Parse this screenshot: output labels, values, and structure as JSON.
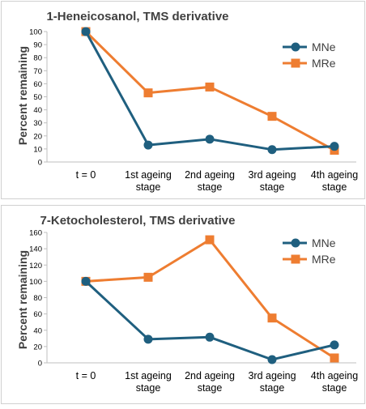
{
  "colors": {
    "MNe": "#1f5f7f",
    "MRe": "#ee7d31"
  },
  "chart_data": [
    {
      "type": "line",
      "title": "1-Heneicosanol, TMS derivative",
      "ylabel": "Percent remaining",
      "ylim": [
        0,
        100
      ],
      "yticks": [
        "0",
        "10",
        "20",
        "30",
        "40",
        "50",
        "60",
        "70",
        "80",
        "90",
        "100"
      ],
      "categories": [
        [
          "t = 0"
        ],
        [
          "1st ageing",
          "stage"
        ],
        [
          "2nd ageing",
          "stage"
        ],
        [
          "3rd ageing",
          "stage"
        ],
        [
          "4th ageing",
          "stage"
        ]
      ],
      "legend_position": "top-right",
      "series": [
        {
          "name": "MNe",
          "marker": "circle",
          "values": [
            100,
            13,
            17.5,
            9.5,
            12
          ]
        },
        {
          "name": "MRe",
          "marker": "square",
          "values": [
            100,
            53,
            57.5,
            35,
            9
          ]
        }
      ]
    },
    {
      "type": "line",
      "title": "7-Ketocholesterol, TMS derivative",
      "ylabel": "Percent remaining",
      "ylim": [
        0,
        160
      ],
      "yticks": [
        "0",
        "20",
        "40",
        "60",
        "80",
        "100",
        "120",
        "140",
        "160"
      ],
      "categories": [
        [
          "t = 0"
        ],
        [
          "1st ageing",
          "stage"
        ],
        [
          "2nd ageing",
          "stage"
        ],
        [
          "3rd ageing",
          "stage"
        ],
        [
          "4th ageing",
          "stage"
        ]
      ],
      "legend_position": "top-right",
      "series": [
        {
          "name": "MNe",
          "marker": "circle",
          "values": [
            100,
            29,
            31.5,
            4,
            22
          ]
        },
        {
          "name": "MRe",
          "marker": "square",
          "values": [
            100,
            105,
            151,
            55,
            6
          ]
        }
      ]
    }
  ]
}
